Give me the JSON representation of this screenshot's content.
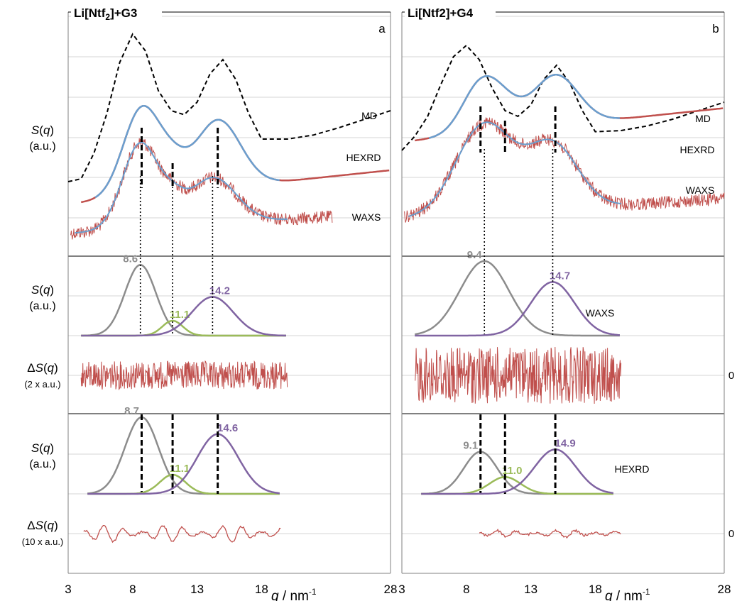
{
  "colors": {
    "md": "#000000",
    "hexrd": "#c0504d",
    "waxs": "#c0504d",
    "fit": "#6a9fcf",
    "peak_gray": "#8c8c8c",
    "peak_green": "#9bbb59",
    "peak_purple": "#8064a2",
    "residual": "#c0504d",
    "grid": "#c8c8c8",
    "axis": "#808080"
  },
  "y_labels": {
    "s_q": "S(q)",
    "au": "(a.u.)",
    "delta_s_q": "ΔS(q)",
    "residual_waxs_scale": "(2 x a.u.)",
    "residual_hexrd_scale": "(10 x a.u.)"
  },
  "zero_label": "0",
  "chart_data": [
    {
      "type": "line",
      "panel": "a",
      "title": "Li[Ntf2]+G3",
      "panel_letter": "a",
      "xlabel": "q / nm-1",
      "xlim": [
        3,
        28
      ],
      "x_ticks": [
        "3",
        "8",
        "13",
        "18",
        "28"
      ],
      "grid": true,
      "series_labels": [
        "MD",
        "HEXRD",
        "WAXS",
        "WAXS",
        "HEXRD"
      ],
      "peaks": {
        "waxs": [
          {
            "q": 8.6,
            "label": "8.6",
            "color": "gray",
            "height": 0.95,
            "width": 1.2
          },
          {
            "q": 11.1,
            "label": "11.1",
            "color": "green",
            "height": 0.2,
            "width": 0.8
          },
          {
            "q": 14.2,
            "label": "14.2",
            "color": "purple",
            "height": 0.52,
            "width": 1.6
          }
        ],
        "hexrd": [
          {
            "q": 8.7,
            "label": "8.7",
            "color": "gray",
            "height": 1.0,
            "width": 1.3
          },
          {
            "q": 11.1,
            "label": "11.1",
            "color": "green",
            "height": 0.25,
            "width": 1.0
          },
          {
            "q": 14.6,
            "label": "14.6",
            "color": "purple",
            "height": 0.78,
            "width": 1.6
          }
        ]
      },
      "top_curves": {
        "md": [
          [
            3.0,
            0.8
          ],
          [
            4.0,
            0.85
          ],
          [
            5.0,
            1.3
          ],
          [
            6.0,
            2.0
          ],
          [
            7.0,
            2.9
          ],
          [
            8.0,
            3.4
          ],
          [
            9.0,
            3.1
          ],
          [
            10.0,
            2.4
          ],
          [
            11.0,
            2.05
          ],
          [
            12.0,
            1.98
          ],
          [
            13.0,
            2.2
          ],
          [
            14.0,
            2.7
          ],
          [
            15.0,
            2.95
          ],
          [
            16.0,
            2.6
          ],
          [
            17.0,
            2.0
          ],
          [
            18.0,
            1.55
          ],
          [
            20.0,
            1.55
          ],
          [
            22.0,
            1.62
          ],
          [
            24.0,
            1.75
          ],
          [
            26.0,
            1.9
          ],
          [
            28.0,
            2.05
          ]
        ]
      }
    },
    {
      "type": "line",
      "panel": "b",
      "title": "Li[Ntf2]+G4",
      "panel_letter": "b",
      "xlabel": "q / nm-1",
      "xlim": [
        3,
        28
      ],
      "x_ticks": [
        "3",
        "8",
        "13",
        "18",
        "28"
      ],
      "grid": true,
      "series_labels": [
        "MD",
        "HEXRD",
        "WAXS",
        "WAXS",
        "HEXRD"
      ],
      "peaks": {
        "waxs": [
          {
            "q": 9.4,
            "label": "9.4",
            "color": "gray",
            "height": 1.0,
            "width": 1.9
          },
          {
            "q": 14.7,
            "label": "14.7",
            "color": "purple",
            "height": 0.72,
            "width": 1.7
          }
        ],
        "hexrd": [
          {
            "q": 9.1,
            "label": "9.1",
            "color": "gray",
            "height": 0.55,
            "width": 1.3
          },
          {
            "q": 11.0,
            "label": "11.0",
            "color": "green",
            "height": 0.22,
            "width": 1.2
          },
          {
            "q": 14.9,
            "label": "14.9",
            "color": "purple",
            "height": 0.58,
            "width": 1.6
          }
        ]
      },
      "top_curves": {
        "md": [
          [
            3.0,
            1.35
          ],
          [
            4.0,
            1.6
          ],
          [
            5.0,
            1.95
          ],
          [
            6.0,
            2.5
          ],
          [
            7.0,
            3.0
          ],
          [
            8.0,
            3.2
          ],
          [
            9.0,
            2.95
          ],
          [
            10.0,
            2.45
          ],
          [
            11.0,
            2.05
          ],
          [
            12.0,
            1.95
          ],
          [
            13.0,
            2.15
          ],
          [
            14.0,
            2.6
          ],
          [
            15.0,
            2.85
          ],
          [
            16.0,
            2.55
          ],
          [
            17.0,
            2.05
          ],
          [
            18.0,
            1.68
          ],
          [
            20.0,
            1.7
          ],
          [
            22.0,
            1.78
          ],
          [
            24.0,
            1.9
          ],
          [
            26.0,
            2.05
          ],
          [
            28.0,
            2.2
          ]
        ]
      }
    }
  ]
}
